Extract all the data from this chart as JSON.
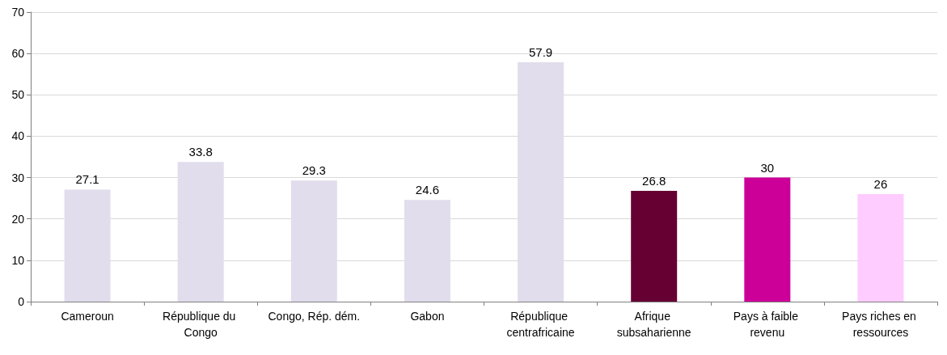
{
  "chart_data": {
    "type": "bar",
    "categories": [
      "Cameroun",
      "République du Congo",
      "Congo, Rép. dém.",
      "Gabon",
      "République centrafricaine",
      "Afrique subsaharienne",
      "Pays à faible revenu",
      "Pays riches en ressources"
    ],
    "values": [
      27.1,
      33.8,
      29.3,
      24.6,
      57.9,
      26.8,
      30,
      26
    ],
    "colors": [
      "#e1dded",
      "#e1dded",
      "#e1dded",
      "#e1dded",
      "#e1dded",
      "#660033",
      "#cc0099",
      "#ffccff"
    ],
    "ylim": [
      0,
      70
    ],
    "yticks": [
      0,
      10,
      20,
      30,
      40,
      50,
      60,
      70
    ],
    "grid": "y",
    "data_labels": true
  }
}
